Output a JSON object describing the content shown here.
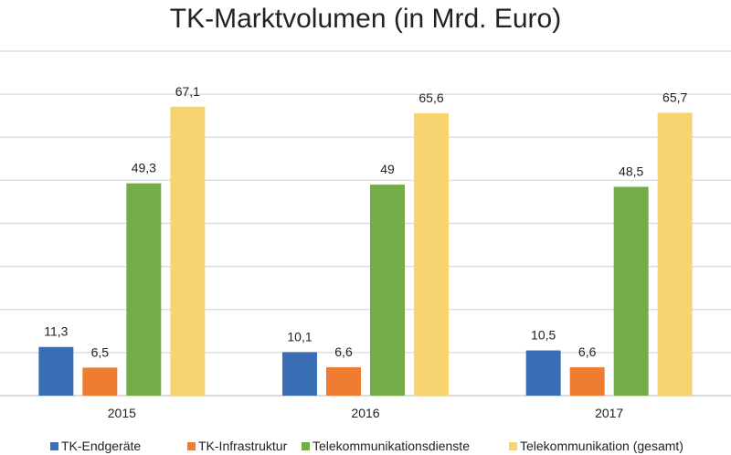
{
  "chart_data": {
    "type": "bar",
    "title": "TK-Marktvolumen (in Mrd. Euro)",
    "categories": [
      "2015",
      "2016",
      "2017"
    ],
    "series": [
      {
        "name": "TK-Endgeräte",
        "color": "#3a6fb5",
        "values": [
          11.3,
          10.1,
          10.5
        ],
        "labels": [
          "11,3",
          "10,1",
          "10,5"
        ]
      },
      {
        "name": "TK-Infrastruktur",
        "color": "#ee7d31",
        "values": [
          6.5,
          6.6,
          6.6
        ],
        "labels": [
          "6,5",
          "6,6",
          "6,6"
        ]
      },
      {
        "name": "Telekommunikationsdienste",
        "color": "#72ad47",
        "values": [
          49.3,
          49,
          48.5
        ],
        "labels": [
          "49,3",
          "49",
          "48,5"
        ]
      },
      {
        "name": "Telekommunikation (gesamt)",
        "color": "#f8d470",
        "values": [
          67.1,
          65.6,
          65.7
        ],
        "labels": [
          "67,1",
          "65,6",
          "65,7"
        ]
      }
    ],
    "ylim": [
      0,
      80
    ],
    "grid": true,
    "grid_step": 10,
    "legend": "bottom"
  }
}
